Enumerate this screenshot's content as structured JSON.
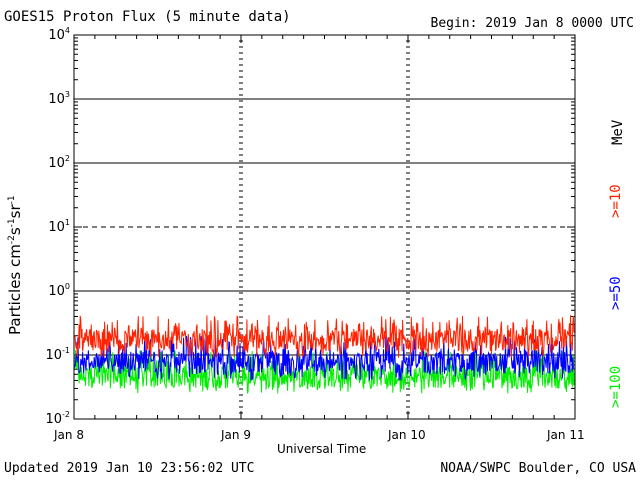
{
  "header": {
    "title": "GOES15 Proton Flux (5 minute data)",
    "begin": "Begin: 2019 Jan 8 0000 UTC"
  },
  "footer": {
    "updated": "Updated 2019 Jan 10 23:56:02 UTC",
    "credit": "NOAA/SWPC Boulder, CO USA"
  },
  "chart_data": {
    "type": "line",
    "title": "GOES15 Proton Flux (5 minute data)",
    "xlabel": "Universal Time",
    "ylabel_parts": [
      "Particles cm",
      "-2",
      "s",
      "-1",
      "sr",
      "-1"
    ],
    "yscale": "log",
    "ylim": [
      0.01,
      10000
    ],
    "y_ticks": [
      {
        "base": "10",
        "exp": "4"
      },
      {
        "base": "10",
        "exp": "3"
      },
      {
        "base": "10",
        "exp": "2"
      },
      {
        "base": "10",
        "exp": "1"
      },
      {
        "base": "10",
        "exp": "0"
      },
      {
        "base": "10",
        "exp": "-1"
      },
      {
        "base": "10",
        "exp": "-2"
      }
    ],
    "x_ticks": [
      "Jan 8",
      "Jan 9",
      "Jan 10",
      "Jan 11"
    ],
    "xlim": [
      "2019-01-08",
      "2019-01-11"
    ],
    "thresholds": [
      {
        "value": 1000,
        "style": "solid"
      },
      {
        "value": 100,
        "style": "solid"
      },
      {
        "value": 10,
        "style": "dashed"
      },
      {
        "value": 1,
        "style": "solid"
      },
      {
        "value": 0.1,
        "style": "solid"
      }
    ],
    "unit_label": "MeV",
    "series": [
      {
        "name": ">=10",
        "color": "#ff2200",
        "typical": 0.17,
        "min": 0.09,
        "max": 0.42
      },
      {
        "name": ">=50",
        "color": "#0000ff",
        "typical": 0.075,
        "min": 0.04,
        "max": 0.2
      },
      {
        "name": ">=100",
        "color": "#00ee00",
        "typical": 0.045,
        "min": 0.025,
        "max": 0.12
      }
    ]
  }
}
